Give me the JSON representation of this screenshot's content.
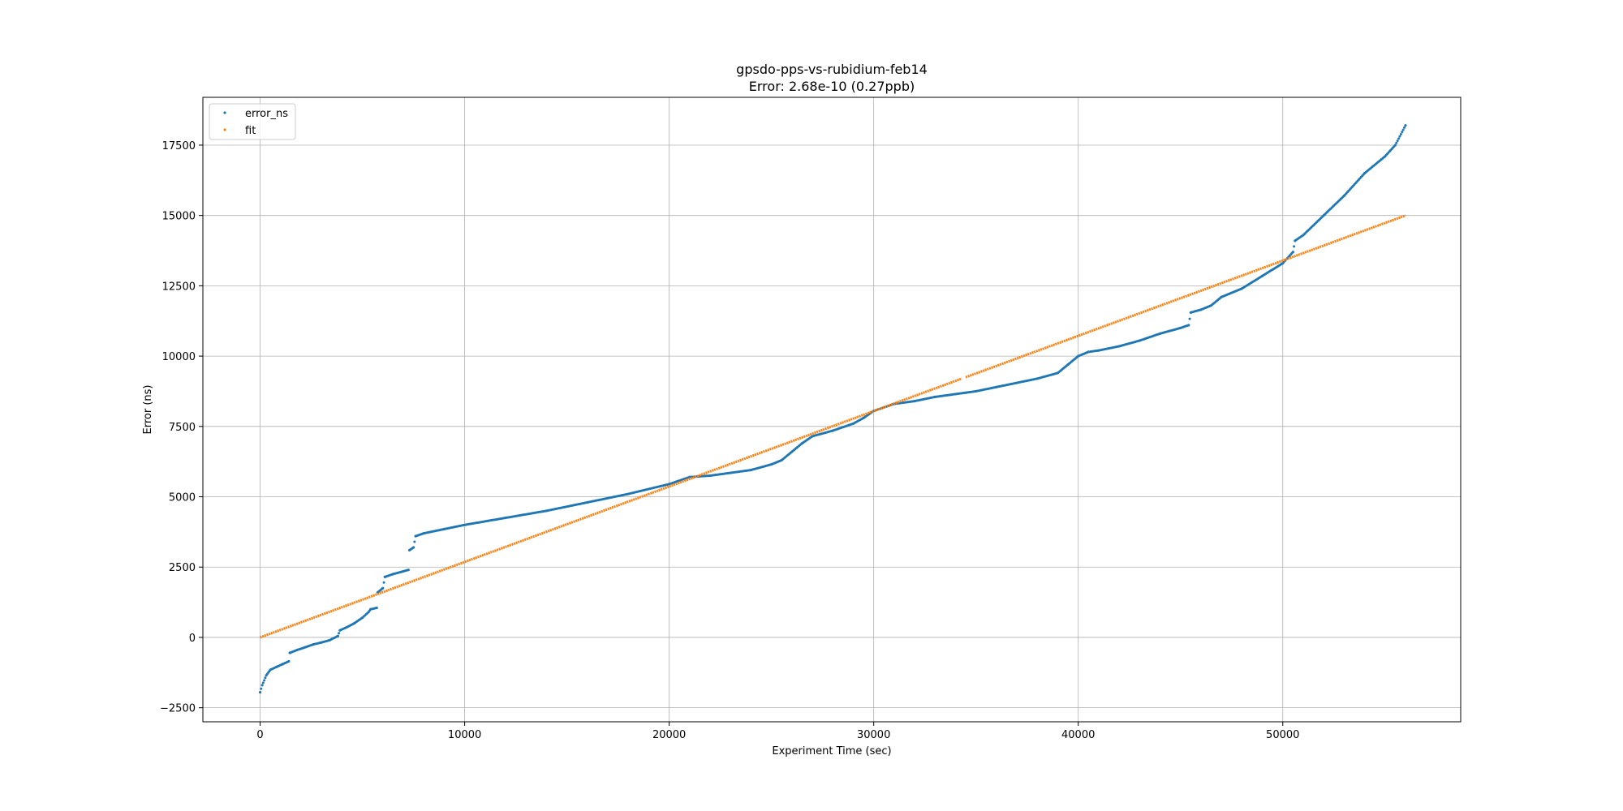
{
  "chart_data": {
    "type": "scatter",
    "title": "gpsdo-pps-vs-rubidium-feb14",
    "subtitle": "Error: 2.68e-10 (0.27ppb)",
    "xlabel": "Experiment Time (sec)",
    "ylabel": "Error (ns)",
    "xlim": [
      -2800,
      58700
    ],
    "ylim": [
      -3000,
      19200
    ],
    "xticks": [
      0,
      10000,
      20000,
      30000,
      40000,
      50000
    ],
    "xtick_labels": [
      "0",
      "10000",
      "20000",
      "30000",
      "40000",
      "50000"
    ],
    "yticks": [
      -2500,
      0,
      2500,
      5000,
      7500,
      10000,
      12500,
      15000,
      17500
    ],
    "ytick_labels": [
      "−2500",
      "0",
      "2500",
      "5000",
      "7500",
      "10000",
      "12500",
      "15000",
      "17500"
    ],
    "grid": true,
    "legend_position": "top-left",
    "series": [
      {
        "name": "error_ns",
        "color": "#1f77b4",
        "points": [
          [
            0,
            -1950
          ],
          [
            100,
            -1700
          ],
          [
            300,
            -1350
          ],
          [
            500,
            -1150
          ],
          [
            800,
            -1050
          ],
          [
            1100,
            -950
          ],
          [
            1400,
            -850
          ],
          [
            1450,
            -550
          ],
          [
            1800,
            -450
          ],
          [
            2200,
            -350
          ],
          [
            2600,
            -250
          ],
          [
            3000,
            -180
          ],
          [
            3400,
            -100
          ],
          [
            3800,
            50
          ],
          [
            3900,
            250
          ],
          [
            4200,
            350
          ],
          [
            4600,
            500
          ],
          [
            5000,
            700
          ],
          [
            5300,
            900
          ],
          [
            5400,
            1000
          ],
          [
            5700,
            1050
          ],
          [
            5750,
            1600
          ],
          [
            6000,
            1750
          ],
          [
            6100,
            2150
          ],
          [
            6500,
            2250
          ],
          [
            7000,
            2350
          ],
          [
            7250,
            2400
          ],
          [
            7300,
            3100
          ],
          [
            7500,
            3200
          ],
          [
            7600,
            3600
          ],
          [
            8000,
            3700
          ],
          [
            9000,
            3850
          ],
          [
            10000,
            4000
          ],
          [
            12000,
            4250
          ],
          [
            14000,
            4500
          ],
          [
            16000,
            4800
          ],
          [
            18000,
            5100
          ],
          [
            20000,
            5450
          ],
          [
            21000,
            5700
          ],
          [
            22000,
            5750
          ],
          [
            23000,
            5850
          ],
          [
            24000,
            5950
          ],
          [
            25000,
            6150
          ],
          [
            25500,
            6300
          ],
          [
            26000,
            6600
          ],
          [
            26500,
            6900
          ],
          [
            27000,
            7150
          ],
          [
            28000,
            7350
          ],
          [
            29000,
            7600
          ],
          [
            29500,
            7800
          ],
          [
            30000,
            8050
          ],
          [
            31000,
            8300
          ],
          [
            32000,
            8400
          ],
          [
            33000,
            8550
          ],
          [
            34000,
            8650
          ],
          [
            34500,
            8700
          ],
          [
            35000,
            8750
          ],
          [
            36000,
            8900
          ],
          [
            37000,
            9050
          ],
          [
            38000,
            9200
          ],
          [
            39000,
            9400
          ],
          [
            39500,
            9700
          ],
          [
            40000,
            10000
          ],
          [
            40500,
            10150
          ],
          [
            41000,
            10200
          ],
          [
            42000,
            10350
          ],
          [
            43000,
            10550
          ],
          [
            44000,
            10800
          ],
          [
            45000,
            11000
          ],
          [
            45400,
            11100
          ],
          [
            45500,
            11550
          ],
          [
            46000,
            11650
          ],
          [
            46500,
            11800
          ],
          [
            47000,
            12100
          ],
          [
            48000,
            12400
          ],
          [
            49000,
            12850
          ],
          [
            50000,
            13300
          ],
          [
            50500,
            13700
          ],
          [
            50600,
            14100
          ],
          [
            51000,
            14300
          ],
          [
            52000,
            15000
          ],
          [
            53000,
            15700
          ],
          [
            54000,
            16500
          ],
          [
            55000,
            17100
          ],
          [
            55500,
            17500
          ],
          [
            56000,
            18200
          ]
        ]
      },
      {
        "name": "fit",
        "color": "#ff7f0e",
        "segments": [
          [
            [
              0,
              0
            ],
            [
              34300,
              9200
            ]
          ],
          [
            [
              34500,
              9250
            ],
            [
              56000,
              15000
            ]
          ]
        ]
      }
    ]
  }
}
